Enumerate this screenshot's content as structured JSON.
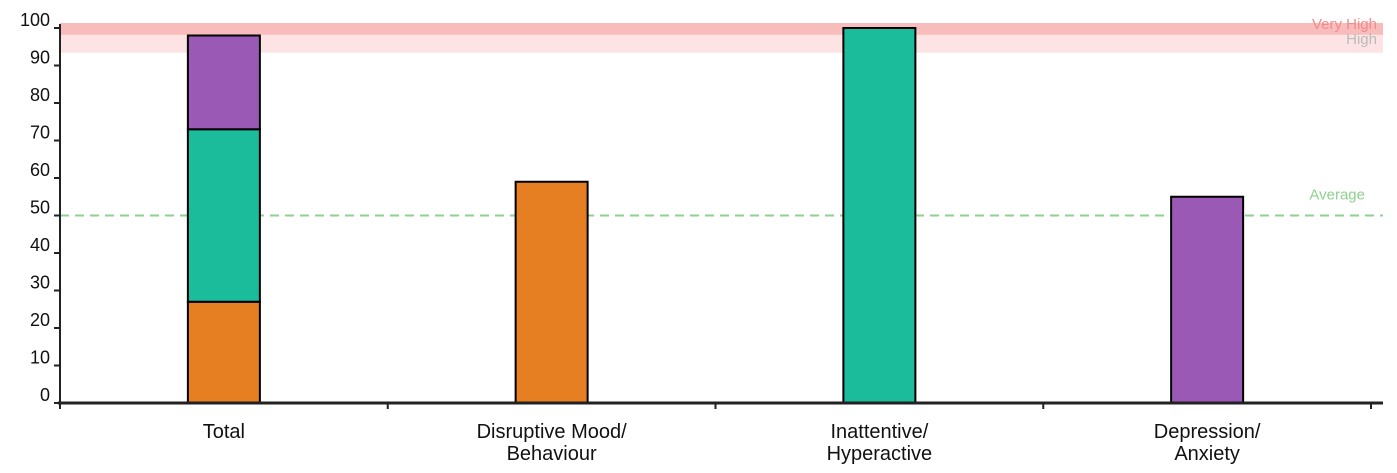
{
  "chart_data": {
    "type": "bar",
    "stacked": true,
    "categories": [
      [
        "Total"
      ],
      [
        "Disruptive Mood/",
        "Behaviour"
      ],
      [
        "Inattentive/",
        "Hyperactive"
      ],
      [
        "Depression/",
        "Anxiety"
      ]
    ],
    "ylim": [
      0,
      100
    ],
    "yticks": [
      0,
      10,
      20,
      30,
      40,
      50,
      60,
      70,
      80,
      90,
      100
    ],
    "colors": {
      "disruptive": "#E67E22",
      "inattentive": "#1ABC9C",
      "depression": "#9B59B6"
    },
    "bars": [
      {
        "segments": [
          {
            "key": "disruptive",
            "value": 27
          },
          {
            "key": "inattentive",
            "value": 46
          },
          {
            "key": "depression",
            "value": 25
          }
        ]
      },
      {
        "segments": [
          {
            "key": "disruptive",
            "value": 59
          }
        ]
      },
      {
        "segments": [
          {
            "key": "inattentive",
            "value": 100
          }
        ]
      },
      {
        "segments": [
          {
            "key": "depression",
            "value": 55
          }
        ]
      }
    ],
    "reference_lines": [
      {
        "label": "Average",
        "value": 50,
        "color": "#8FD18F",
        "dashed": true
      }
    ],
    "bands": [
      {
        "label": "High",
        "from": 95,
        "to": 100,
        "color": "#FDE3E3",
        "text_color": "#BBBBBB"
      },
      {
        "label": "Very High",
        "from": 99,
        "to": 100,
        "color": "#F9BCBC",
        "text_color": "#F28B8B"
      }
    ]
  }
}
